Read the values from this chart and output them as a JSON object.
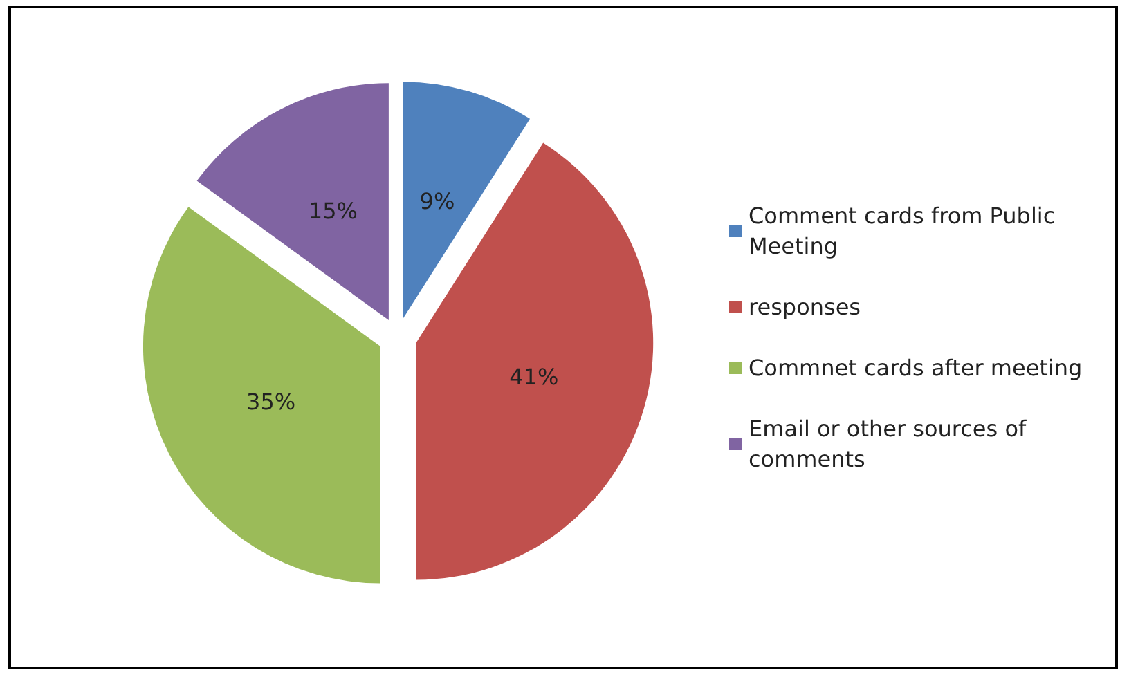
{
  "chart_data": {
    "type": "pie",
    "categories": [
      "Comment cards from Public Meeting",
      "responses",
      "Commnet cards after meeting",
      "Email or other sources of comments"
    ],
    "values": [
      9,
      41,
      35,
      15
    ],
    "colors": [
      "#4f81bd",
      "#c0504d",
      "#9bbb59",
      "#8064a2"
    ],
    "value_labels": [
      "9%",
      "41%",
      "35%",
      "15%"
    ],
    "legend": "right"
  }
}
